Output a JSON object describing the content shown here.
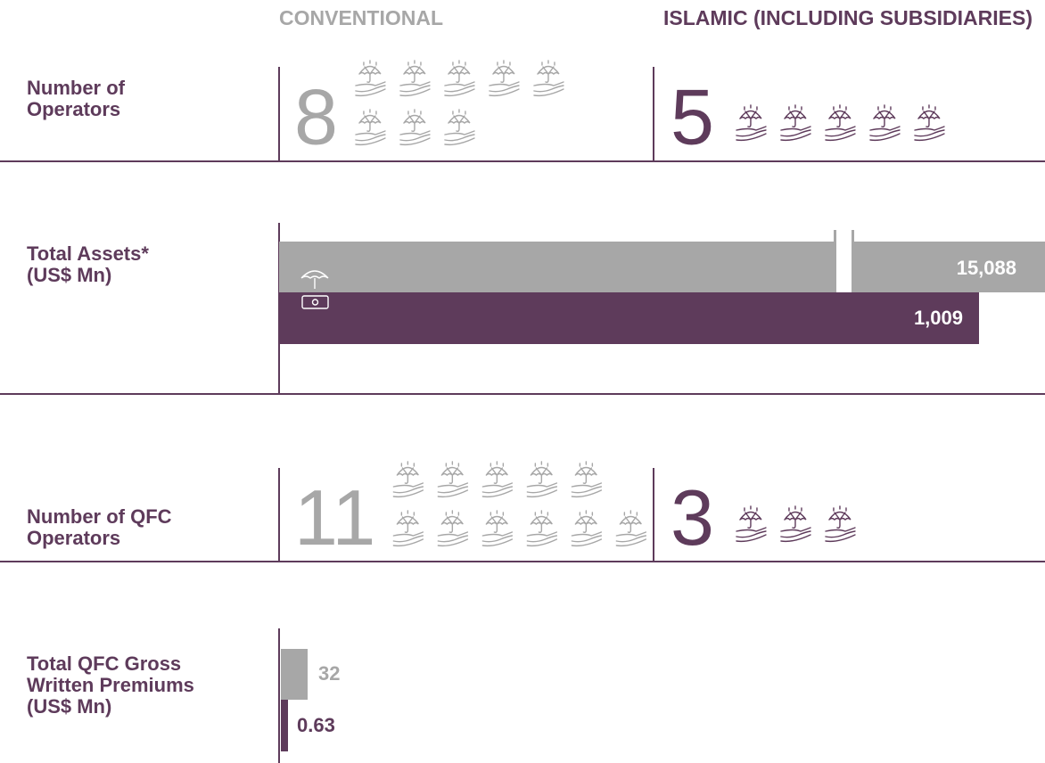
{
  "headers": {
    "conventional": "CONVENTIONAL",
    "islamic": "ISLAMIC (INCLUDING SUBSIDIARIES)"
  },
  "colors": {
    "conventional": "#a7a7a7",
    "islamic": "#5e3b5b"
  },
  "rows": [
    {
      "type": "count",
      "label": [
        "Number of",
        "Operators"
      ],
      "conventional": 8,
      "islamic": 5
    },
    {
      "type": "bar",
      "label": [
        "Total Assets*",
        "(US$ Mn)"
      ],
      "conventional": 15088,
      "conventional_label": "15,088",
      "islamic": 1009,
      "islamic_label": "1,009"
    },
    {
      "type": "count",
      "label": [
        "Number of QFC",
        "Operators"
      ],
      "conventional": 11,
      "islamic": 3
    },
    {
      "type": "bar",
      "label": [
        "Total QFC Gross",
        "Written Premiums",
        "(US$ Mn)"
      ],
      "conventional": 32,
      "islamic": 0.63
    }
  ]
}
